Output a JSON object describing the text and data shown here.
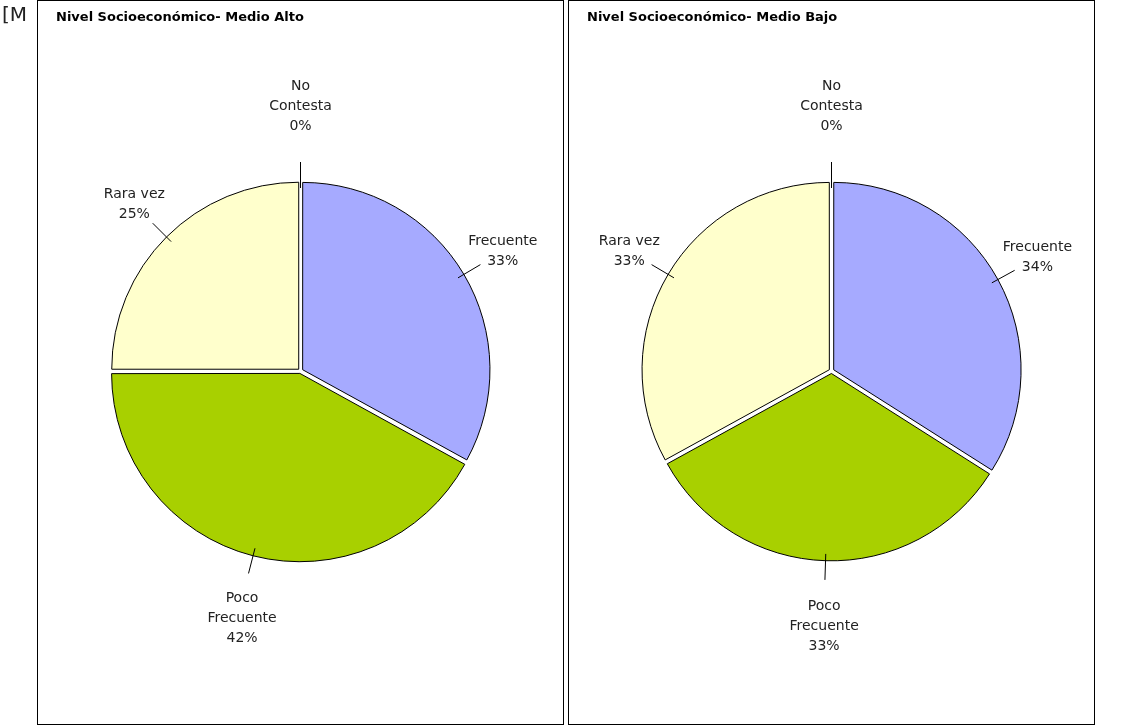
{
  "chart_data": [
    {
      "type": "pie",
      "title": "Nivel Socioeconómico- Medio Alto",
      "categories": [
        "Frecuente",
        "Poco Frecuente",
        "Rara vez",
        "No Contesta"
      ],
      "values": [
        33,
        42,
        25,
        0
      ],
      "value_labels": [
        "33%",
        "42%",
        "25%",
        "0%"
      ],
      "colors": [
        "#a6aaff",
        "#a8d000",
        "#ffffcc",
        "#ffffff"
      ],
      "legend": false,
      "annotations": [
        "[M"
      ]
    },
    {
      "type": "pie",
      "title": "Nivel Socioeconómico- Medio Bajo",
      "categories": [
        "Frecuente",
        "Poco Frecuente",
        "Rara vez",
        "No Contesta"
      ],
      "values": [
        34,
        33,
        33,
        0
      ],
      "value_labels": [
        "34%",
        "33%",
        "33%",
        "0%"
      ],
      "colors": [
        "#a6aaff",
        "#a8d000",
        "#ffffcc",
        "#ffffff"
      ],
      "legend": false
    }
  ]
}
